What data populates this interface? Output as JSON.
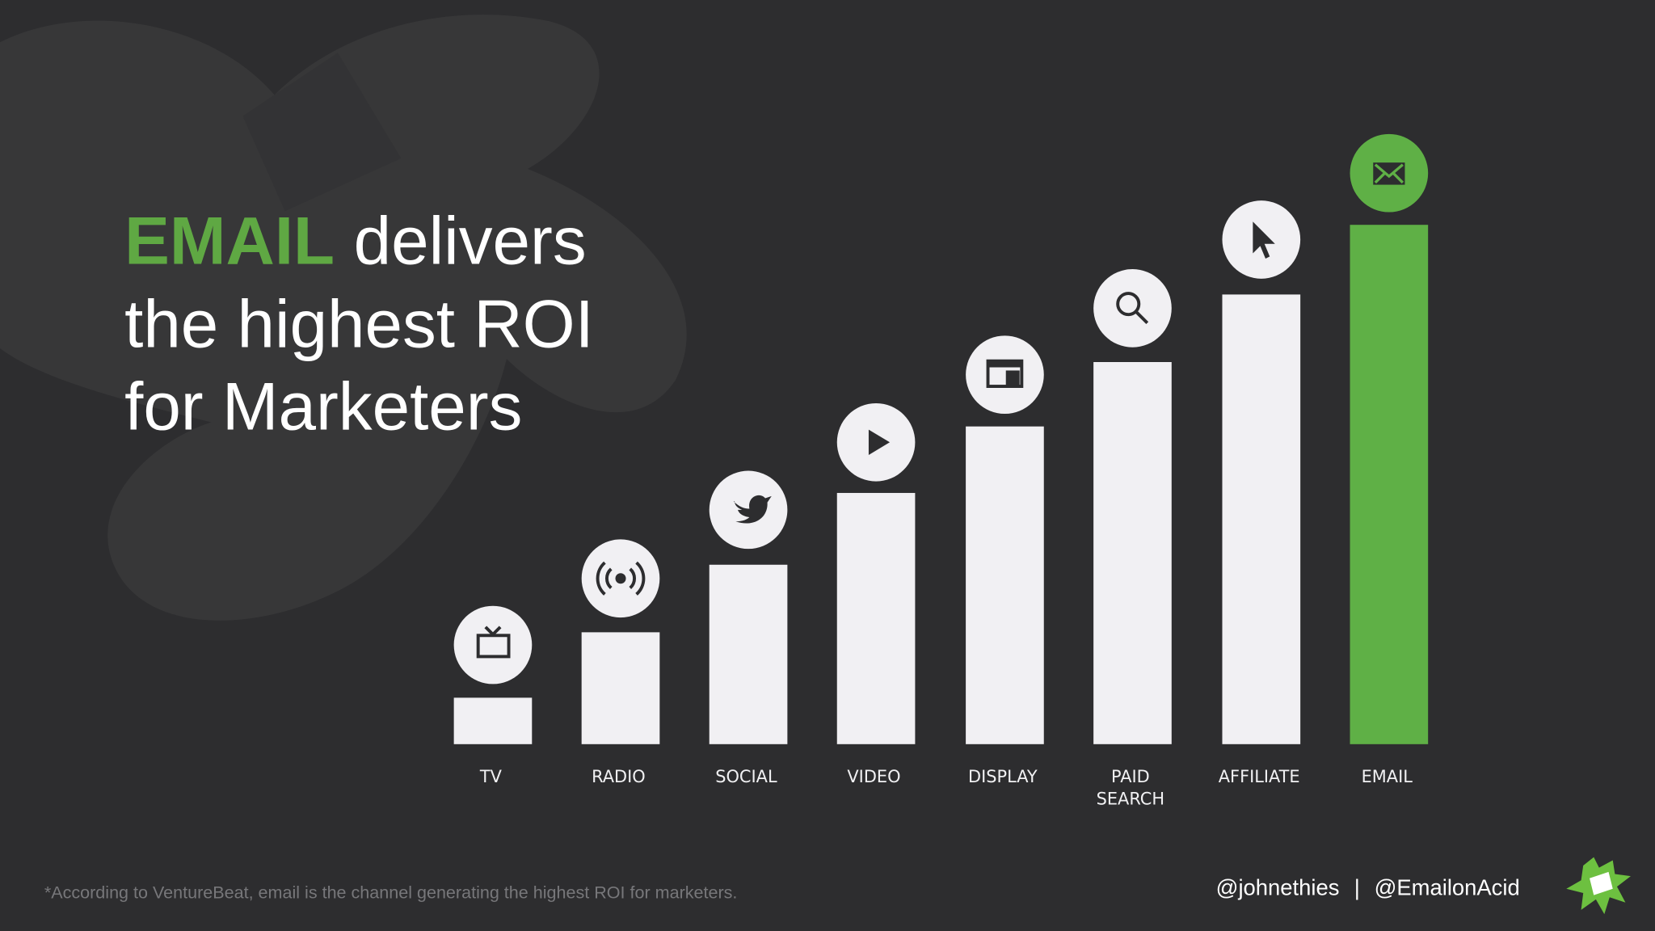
{
  "title": {
    "highlight": "EMAIL",
    "line1_rest": "delivers",
    "line2": "the highest ROI",
    "line3": "for Marketers"
  },
  "channels": [
    {
      "label_lines": [
        "TV"
      ]
    },
    {
      "label_lines": [
        "RADIO"
      ]
    },
    {
      "label_lines": [
        "SOCIAL"
      ]
    },
    {
      "label_lines": [
        "VIDEO"
      ]
    },
    {
      "label_lines": [
        "DISPLAY"
      ]
    },
    {
      "label_lines": [
        "PAID",
        "SEARCH"
      ]
    },
    {
      "label_lines": [
        "AFFILIATE"
      ]
    },
    {
      "label_lines": [
        "EMAIL"
      ]
    }
  ],
  "footnote": "*According to VentureBeat, email is the channel generating the highest ROI for marketers.",
  "handles": {
    "first": "@johnethies",
    "separator": "|",
    "second": "@EmailonAcid"
  }
}
